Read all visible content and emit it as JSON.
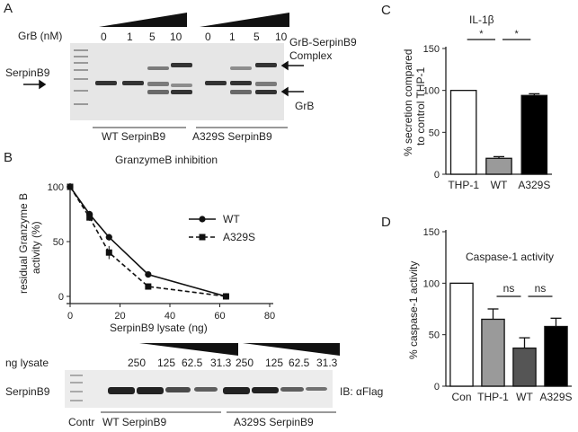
{
  "panel_a": {
    "letter": "A",
    "grb_label": "GrB (nM)",
    "concentrations": [
      "0",
      "1",
      "5",
      "10",
      "0",
      "1",
      "5",
      "10"
    ],
    "complex_label": "GrB-SerpinB9\nComplex",
    "complex_line1": "GrB-SerpinB9",
    "complex_line2": "Complex",
    "serpin_label": "SerpinB9",
    "grb_band_label": "GrB",
    "group_wt": "WT SerpinB9",
    "group_mut": "A329S SerpinB9"
  },
  "panel_b": {
    "letter": "B",
    "title": "GranzymeB inhibition",
    "ylabel_line1": "residual Granzyme B",
    "ylabel_line2": "activity (%)",
    "xlabel": "SerpinB9 lysate (ng)",
    "blot_lysate_label": "ng lysate",
    "blot_amounts": [
      "250",
      "125",
      "62.5",
      "31.3",
      "250",
      "125",
      "62.5",
      "31.3"
    ],
    "blot_row_label": "SerpinB9",
    "blot_ib_label": "IB: αFlag",
    "blot_contr": "Contr",
    "blot_group_wt": "WT SerpinB9",
    "blot_group_mut": "A329S SerpinB9"
  },
  "panel_c": {
    "letter": "C",
    "title": "IL-1β",
    "ylabel_line1": "% secretion compared",
    "ylabel_line2": "to control THP-1"
  },
  "panel_d": {
    "letter": "D",
    "title": "Caspase-1 activity",
    "ylabel": "% caspase-1 activity"
  },
  "chart_data": [
    {
      "panel": "B",
      "type": "line",
      "title": "GranzymeB inhibition",
      "xlabel": "SerpinB9 lysate (ng)",
      "ylabel": "residual Granzyme B activity (%)",
      "xlim": [
        0,
        80
      ],
      "ylim": [
        0,
        100
      ],
      "xticks": [
        0,
        20,
        40,
        60,
        80
      ],
      "yticks": [
        0,
        50,
        100
      ],
      "legend": "right",
      "series": [
        {
          "name": "WT",
          "marker": "circle",
          "dash": false,
          "x": [
            0,
            7.8,
            15.6,
            31.3,
            62.5
          ],
          "y": [
            100,
            75,
            54,
            20,
            0
          ],
          "err": [
            2,
            3,
            3,
            2,
            2
          ]
        },
        {
          "name": "A329S",
          "marker": "square",
          "dash": true,
          "x": [
            0,
            7.8,
            15.6,
            31.3,
            62.5
          ],
          "y": [
            100,
            72,
            40,
            9,
            0
          ],
          "err": [
            2,
            3,
            6,
            2,
            2
          ]
        }
      ]
    },
    {
      "panel": "C",
      "type": "bar",
      "title": "IL-1β",
      "ylabel": "% secretion compared to control THP-1",
      "ylim": [
        0,
        150
      ],
      "yticks": [
        0,
        50,
        100,
        150
      ],
      "categories": [
        "THP-1",
        "WT",
        "A329S"
      ],
      "values": [
        100,
        19,
        94
      ],
      "errors": [
        0,
        2,
        2
      ],
      "colors": [
        "#ffffff",
        "#9a9a9a",
        "#000000"
      ],
      "significance": [
        {
          "from": 0,
          "to": 1,
          "label": "*"
        },
        {
          "from": 1,
          "to": 2,
          "label": "*"
        }
      ]
    },
    {
      "panel": "D",
      "type": "bar",
      "title": "Caspase-1 activity",
      "ylabel": "% caspase-1 activity",
      "ylim": [
        0,
        150
      ],
      "yticks": [
        0,
        50,
        100,
        150
      ],
      "categories": [
        "Con",
        "THP-1",
        "WT",
        "A329S"
      ],
      "values": [
        100,
        65,
        37,
        58
      ],
      "errors": [
        0,
        10,
        10,
        8
      ],
      "colors": [
        "#ffffff",
        "#9a9a9a",
        "#555555",
        "#000000"
      ],
      "significance": [
        {
          "from": 1,
          "to": 2,
          "label": "ns"
        },
        {
          "from": 2,
          "to": 3,
          "label": "ns"
        }
      ]
    }
  ]
}
